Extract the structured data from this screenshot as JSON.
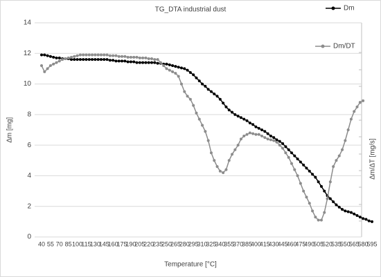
{
  "chart_data": {
    "type": "line",
    "title": "TG_DTA industrial dust",
    "x_label": "Temperature [°C]",
    "y_label": "∆m [mg]",
    "y2_label": "∆m/∆T [mg/s]",
    "categories": [
      "40",
      null,
      null,
      "55",
      null,
      null,
      "70",
      null,
      null,
      "85",
      null,
      null,
      "100",
      null,
      null,
      "115",
      null,
      null,
      "130",
      null,
      null,
      "145",
      null,
      null,
      "160",
      null,
      null,
      "175",
      null,
      null,
      "190",
      null,
      null,
      "205",
      null,
      null,
      "220",
      null,
      null,
      "235",
      null,
      null,
      "250",
      null,
      null,
      "265",
      null,
      null,
      "280",
      null,
      null,
      "295",
      null,
      null,
      "310",
      null,
      null,
      "325",
      null,
      null,
      "340",
      null,
      null,
      "355",
      null,
      null,
      "370",
      null,
      null,
      "385",
      null,
      null,
      "400",
      null,
      null,
      "415",
      null,
      null,
      "430",
      null,
      null,
      "445",
      null,
      null,
      "460",
      null,
      null,
      "475",
      null,
      null,
      "490",
      null,
      null,
      "505",
      null,
      null,
      "520",
      null,
      null,
      "535",
      null,
      null,
      "550",
      null,
      null,
      "565",
      null,
      null,
      "580",
      null,
      null,
      "595"
    ],
    "series": [
      {
        "name": "Dm",
        "color": "#000000",
        "values": [
          11.9,
          11.9,
          11.85,
          11.8,
          11.75,
          11.7,
          11.7,
          11.65,
          11.65,
          11.65,
          11.6,
          11.6,
          11.6,
          11.6,
          11.6,
          11.6,
          11.6,
          11.6,
          11.6,
          11.6,
          11.6,
          11.6,
          11.6,
          11.55,
          11.55,
          11.5,
          11.5,
          11.5,
          11.5,
          11.45,
          11.45,
          11.45,
          11.4,
          11.4,
          11.4,
          11.4,
          11.4,
          11.4,
          11.4,
          11.35,
          11.35,
          11.3,
          11.3,
          11.25,
          11.2,
          11.15,
          11.1,
          11.05,
          11.0,
          10.9,
          10.75,
          10.6,
          10.4,
          10.2,
          10.0,
          9.85,
          9.65,
          9.5,
          9.35,
          9.2,
          9.0,
          8.75,
          8.5,
          8.3,
          8.15,
          8.0,
          7.9,
          7.8,
          7.7,
          7.6,
          7.45,
          7.35,
          7.2,
          7.1,
          7.0,
          6.9,
          6.75,
          6.6,
          6.5,
          6.35,
          6.25,
          6.1,
          5.9,
          5.7,
          5.5,
          5.3,
          5.1,
          4.9,
          4.7,
          4.5,
          4.3,
          4.1,
          3.9,
          3.6,
          3.3,
          3.0,
          2.7,
          2.5,
          2.3,
          2.1,
          1.95,
          1.8,
          1.7,
          1.65,
          1.6,
          1.5,
          1.4,
          1.3,
          1.2,
          1.15,
          1.05,
          1.0
        ]
      },
      {
        "name": "Dm/DT",
        "color": "#8c8c8c",
        "values": [
          11.2,
          10.8,
          11.0,
          11.2,
          11.3,
          11.4,
          11.5,
          11.6,
          11.65,
          11.7,
          11.75,
          11.8,
          11.85,
          11.9,
          11.9,
          11.9,
          11.9,
          11.9,
          11.9,
          11.9,
          11.9,
          11.9,
          11.9,
          11.85,
          11.85,
          11.85,
          11.8,
          11.8,
          11.8,
          11.75,
          11.75,
          11.75,
          11.75,
          11.7,
          11.7,
          11.7,
          11.65,
          11.65,
          11.6,
          11.6,
          11.4,
          11.2,
          11.0,
          10.9,
          10.8,
          10.7,
          10.5,
          10.0,
          9.5,
          9.2,
          9.0,
          8.6,
          8.1,
          7.7,
          7.3,
          6.9,
          6.3,
          5.5,
          5.0,
          4.6,
          4.3,
          4.2,
          4.4,
          5.0,
          5.4,
          5.7,
          6.0,
          6.4,
          6.6,
          6.7,
          6.8,
          6.75,
          6.7,
          6.7,
          6.6,
          6.5,
          6.4,
          6.35,
          6.3,
          6.2,
          6.0,
          5.8,
          5.5,
          5.2,
          4.8,
          4.4,
          4.0,
          3.5,
          3.0,
          2.6,
          2.2,
          1.7,
          1.3,
          1.1,
          1.1,
          1.6,
          2.5,
          3.6,
          4.6,
          5.0,
          5.3,
          5.7,
          6.3,
          7.0,
          7.7,
          8.2,
          8.5,
          8.8,
          8.9,
          null,
          null,
          null
        ]
      }
    ],
    "ylim": [
      0,
      14
    ],
    "yticks": [
      0,
      2,
      4,
      6,
      8,
      10,
      12,
      14
    ],
    "grid": true,
    "legend": "top-right"
  }
}
